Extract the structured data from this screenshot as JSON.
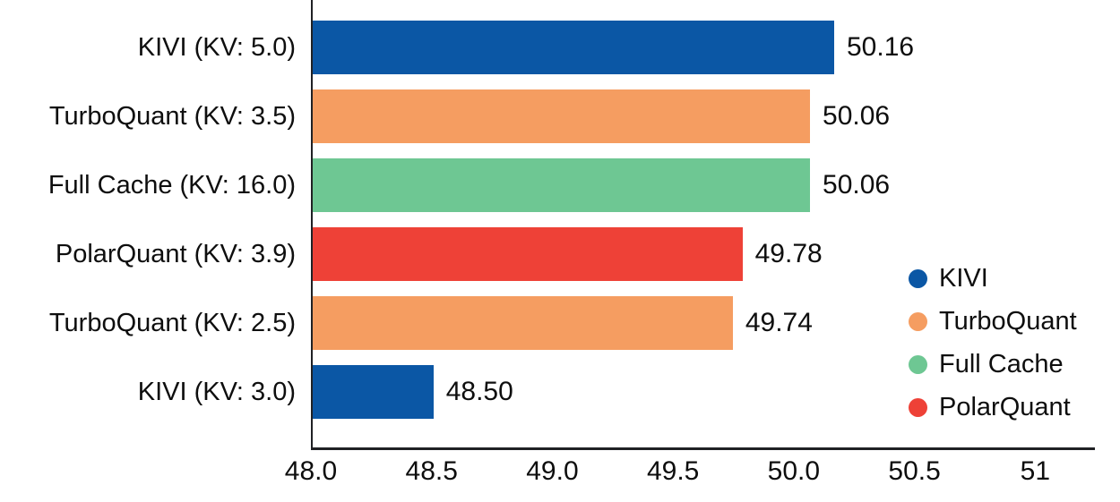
{
  "chart_data": {
    "type": "bar",
    "orientation": "horizontal",
    "title": "",
    "xlabel": "",
    "ylabel": "",
    "bars": [
      {
        "category": "KIVI (KV: 5.0)",
        "series": "KIVI",
        "value": 50.16,
        "value_label": "50.16"
      },
      {
        "category": "TurboQuant (KV: 3.5)",
        "series": "TurboQuant",
        "value": 50.06,
        "value_label": "50.06"
      },
      {
        "category": "Full Cache (KV: 16.0)",
        "series": "Full Cache",
        "value": 50.06,
        "value_label": "50.06"
      },
      {
        "category": "PolarQuant (KV: 3.9)",
        "series": "PolarQuant",
        "value": 49.78,
        "value_label": "49.78"
      },
      {
        "category": "TurboQuant (KV: 2.5)",
        "series": "TurboQuant",
        "value": 49.74,
        "value_label": "49.74"
      },
      {
        "category": "KIVI (KV: 3.0)",
        "series": "KIVI",
        "value": 48.5,
        "value_label": "48.50"
      }
    ],
    "x_axis": {
      "min": 48.0,
      "max": 51.24,
      "ticks": [
        {
          "value": 48.0,
          "label": "48.0"
        },
        {
          "value": 48.5,
          "label": "48.5"
        },
        {
          "value": 49.0,
          "label": "49.0"
        },
        {
          "value": 49.5,
          "label": "49.5"
        },
        {
          "value": 50.0,
          "label": "50.0"
        },
        {
          "value": 50.5,
          "label": "50.5"
        },
        {
          "value": 51.0,
          "label": "51"
        }
      ]
    },
    "legend": [
      {
        "name": "KIVI",
        "color": "#0b57a5"
      },
      {
        "name": "TurboQuant",
        "color": "#f59d61"
      },
      {
        "name": "Full Cache",
        "color": "#6ec793"
      },
      {
        "name": "PolarQuant",
        "color": "#ee4137"
      }
    ],
    "series_colors": {
      "KIVI": "#0b57a5",
      "TurboQuant": "#f59d61",
      "Full Cache": "#6ec793",
      "PolarQuant": "#ee4137"
    },
    "axis_color": "#202124",
    "text_color": "#0e0e0e",
    "legend_position": "right",
    "grid": false
  }
}
